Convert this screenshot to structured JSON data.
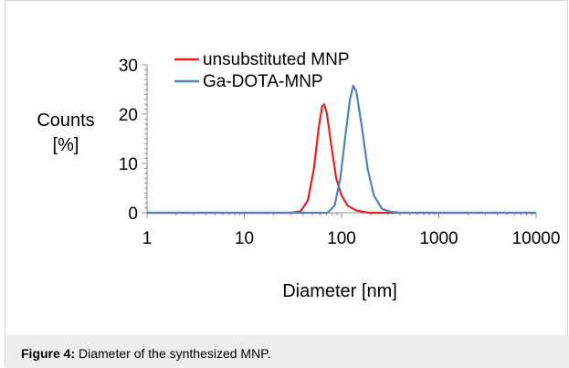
{
  "chart_data": {
    "type": "line",
    "xscale": "log",
    "xlabel": "Diameter [nm]",
    "ylabel_lines": [
      "Counts",
      "[%]"
    ],
    "xlim": [
      1,
      10000
    ],
    "ylim": [
      0,
      30
    ],
    "xticks": [
      1,
      10,
      100,
      1000,
      10000
    ],
    "xtick_labels": [
      "1",
      "10",
      "100",
      "1000",
      "10000"
    ],
    "yticks": [
      0,
      10,
      20,
      30
    ],
    "ytick_labels": [
      "0",
      "10",
      "20",
      "30"
    ],
    "legend_position": "top-center",
    "series": [
      {
        "name": "unsubstituted MNP",
        "color": "#ee1c1c",
        "points": [
          [
            1,
            0
          ],
          [
            30,
            0
          ],
          [
            38,
            0.3
          ],
          [
            45,
            2.5
          ],
          [
            52,
            9
          ],
          [
            58,
            17
          ],
          [
            63,
            21.5
          ],
          [
            66,
            22
          ],
          [
            70,
            20.5
          ],
          [
            78,
            14
          ],
          [
            88,
            7
          ],
          [
            100,
            3.5
          ],
          [
            115,
            1.5
          ],
          [
            140,
            0.5
          ],
          [
            190,
            0
          ],
          [
            10000,
            0
          ]
        ]
      },
      {
        "name": "Ga-DOTA-MNP",
        "color": "#4f81bd",
        "points": [
          [
            1,
            0
          ],
          [
            72,
            0
          ],
          [
            85,
            1.5
          ],
          [
            97,
            7
          ],
          [
            110,
            16
          ],
          [
            122,
            23
          ],
          [
            132,
            25.8
          ],
          [
            142,
            24.5
          ],
          [
            160,
            18
          ],
          [
            185,
            9
          ],
          [
            215,
            3.5
          ],
          [
            260,
            0.8
          ],
          [
            320,
            0.2
          ],
          [
            400,
            0
          ],
          [
            10000,
            0
          ]
        ]
      }
    ]
  },
  "caption": {
    "label": "Figure 4:",
    "text": " Diameter of the synthesized MNP."
  }
}
